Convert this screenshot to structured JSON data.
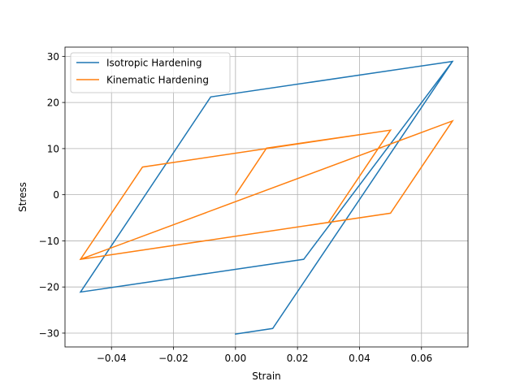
{
  "chart_data": {
    "type": "line",
    "xlabel": "Strain",
    "ylabel": "Stress",
    "xlim": [
      -0.055,
      0.075
    ],
    "ylim": [
      -33,
      32
    ],
    "grid": true,
    "legend_position": "top-left",
    "x_ticks": [
      -0.04,
      -0.02,
      0.0,
      0.02,
      0.04,
      0.06
    ],
    "x_tick_labels": [
      "−0.04",
      "−0.02",
      "0.00",
      "0.02",
      "0.04",
      "0.06"
    ],
    "y_ticks": [
      -30,
      -20,
      -10,
      0,
      10,
      20,
      30
    ],
    "y_tick_labels": [
      "−30",
      "−20",
      "−10",
      "0",
      "10",
      "20",
      "30"
    ],
    "series": [
      {
        "name": "Isotropic Hardening",
        "color": "#1f77b4",
        "points": [
          [
            0.0,
            -30.2
          ],
          [
            0.012,
            -29.0
          ],
          [
            0.07,
            28.9
          ],
          [
            -0.008,
            21.2
          ],
          [
            -0.05,
            -21.1
          ],
          [
            0.022,
            -14.0
          ],
          [
            0.07,
            28.9
          ]
        ]
      },
      {
        "name": "Kinematic Hardening",
        "color": "#ff7f0e",
        "points": [
          [
            0.0,
            0.0
          ],
          [
            0.01,
            10.1
          ],
          [
            0.05,
            14.0
          ],
          [
            0.03,
            -6.0
          ],
          [
            -0.05,
            -14.0
          ],
          [
            -0.03,
            6.0
          ],
          [
            0.05,
            14.0
          ],
          [
            0.03,
            -6.0
          ],
          [
            -0.05,
            -14.0
          ],
          [
            0.07,
            16.0
          ],
          [
            0.05,
            -4.0
          ],
          [
            -0.05,
            -14.0
          ]
        ]
      }
    ]
  }
}
